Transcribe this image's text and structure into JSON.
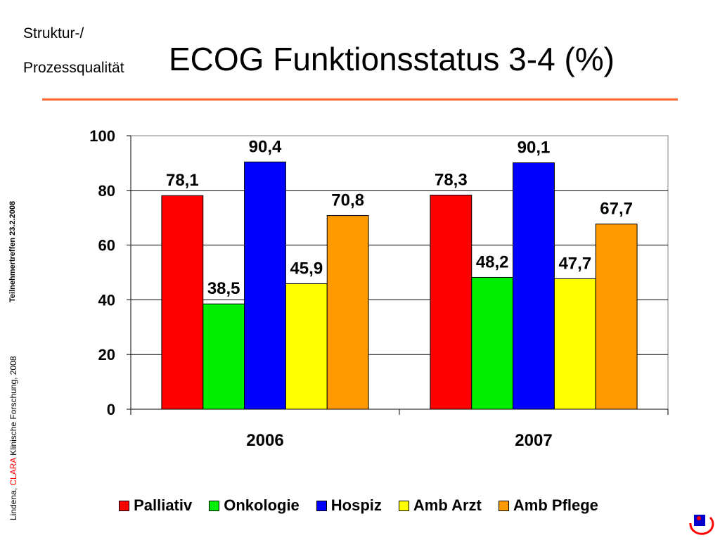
{
  "header": {
    "subtitle_line1": "Struktur-/",
    "subtitle_line2": "Prozessqualität",
    "title": "ECOG Funktionsstatus 3-4 (%)",
    "rule_color": "#ff6633"
  },
  "sidebar": {
    "event_text": "Teilnehmertreffen 23.2.2008",
    "credit_prefix": "Lindena, ",
    "credit_accent": "CLARA",
    "credit_suffix": " Klinische Forschung, 2008",
    "accent_color": "#ff0000"
  },
  "logo": {
    "icon": "clara-logo-icon"
  },
  "chart_data": {
    "type": "bar",
    "categories": [
      "2006",
      "2007"
    ],
    "series": [
      {
        "name": "Palliativ",
        "color": "#ff0000",
        "values": [
          78.1,
          78.3
        ],
        "labels": [
          "78,1",
          "78,3"
        ]
      },
      {
        "name": "Onkologie",
        "color": "#00ee00",
        "values": [
          38.5,
          48.2
        ],
        "labels": [
          "38,5",
          "48,2"
        ]
      },
      {
        "name": "Hospiz",
        "color": "#0000ff",
        "values": [
          90.4,
          90.1
        ],
        "labels": [
          "90,4",
          "90,1"
        ]
      },
      {
        "name": "Amb Arzt",
        "color": "#ffff00",
        "values": [
          45.9,
          47.7
        ],
        "labels": [
          "45,9",
          "47,7"
        ]
      },
      {
        "name": "Amb Pflege",
        "color": "#ff9900",
        "values": [
          70.8,
          67.7
        ],
        "labels": [
          "70,8",
          "67,7"
        ]
      }
    ],
    "ylim": [
      0,
      100
    ],
    "yticks": [
      "0",
      "20",
      "40",
      "60",
      "80",
      "100"
    ],
    "grid": true,
    "legend_position": "bottom",
    "title": "",
    "xlabel": "",
    "ylabel": ""
  }
}
